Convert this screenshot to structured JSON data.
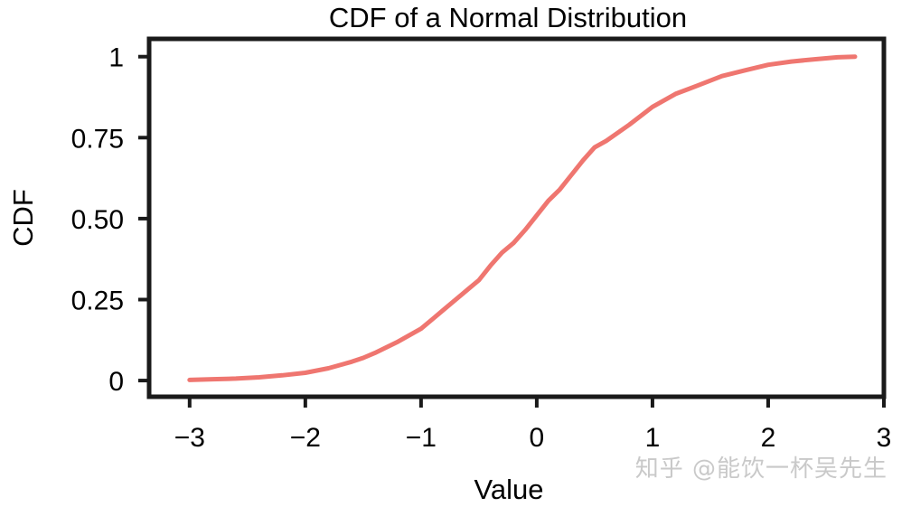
{
  "chart_data": {
    "type": "line",
    "title": "CDF of a Normal Distribution",
    "xlabel": "Value",
    "ylabel": "CDF",
    "xlim": [
      -3.35,
      3.0
    ],
    "ylim": [
      -0.05,
      1.055
    ],
    "x_ticks": [
      -3,
      -2,
      -1,
      0,
      1,
      2,
      3
    ],
    "x_tick_labels": [
      "−3",
      "−2",
      "−1",
      "0",
      "1",
      "2",
      "3"
    ],
    "y_ticks": [
      0,
      0.25,
      0.5,
      0.75,
      1
    ],
    "y_tick_labels": [
      "0",
      "0.25",
      "0.50",
      "0.75",
      "1"
    ],
    "grid": false,
    "series": [
      {
        "color": "#ef7670",
        "x": [
          -3.0,
          -2.8,
          -2.6,
          -2.4,
          -2.2,
          -2.0,
          -1.8,
          -1.6,
          -1.5,
          -1.4,
          -1.2,
          -1.0,
          -0.9,
          -0.8,
          -0.6,
          -0.5,
          -0.4,
          -0.3,
          -0.2,
          -0.1,
          0.0,
          0.1,
          0.2,
          0.3,
          0.4,
          0.5,
          0.6,
          0.8,
          1.0,
          1.2,
          1.4,
          1.6,
          1.8,
          2.0,
          2.2,
          2.4,
          2.6,
          2.75
        ],
        "y": [
          0.002,
          0.004,
          0.006,
          0.01,
          0.016,
          0.024,
          0.038,
          0.058,
          0.07,
          0.085,
          0.12,
          0.16,
          0.19,
          0.22,
          0.28,
          0.31,
          0.355,
          0.395,
          0.425,
          0.465,
          0.51,
          0.555,
          0.59,
          0.635,
          0.68,
          0.72,
          0.74,
          0.79,
          0.845,
          0.885,
          0.912,
          0.94,
          0.958,
          0.975,
          0.985,
          0.992,
          0.998,
          1.0
        ]
      }
    ]
  },
  "watermark": "知乎 @能饮一杯吴先生"
}
